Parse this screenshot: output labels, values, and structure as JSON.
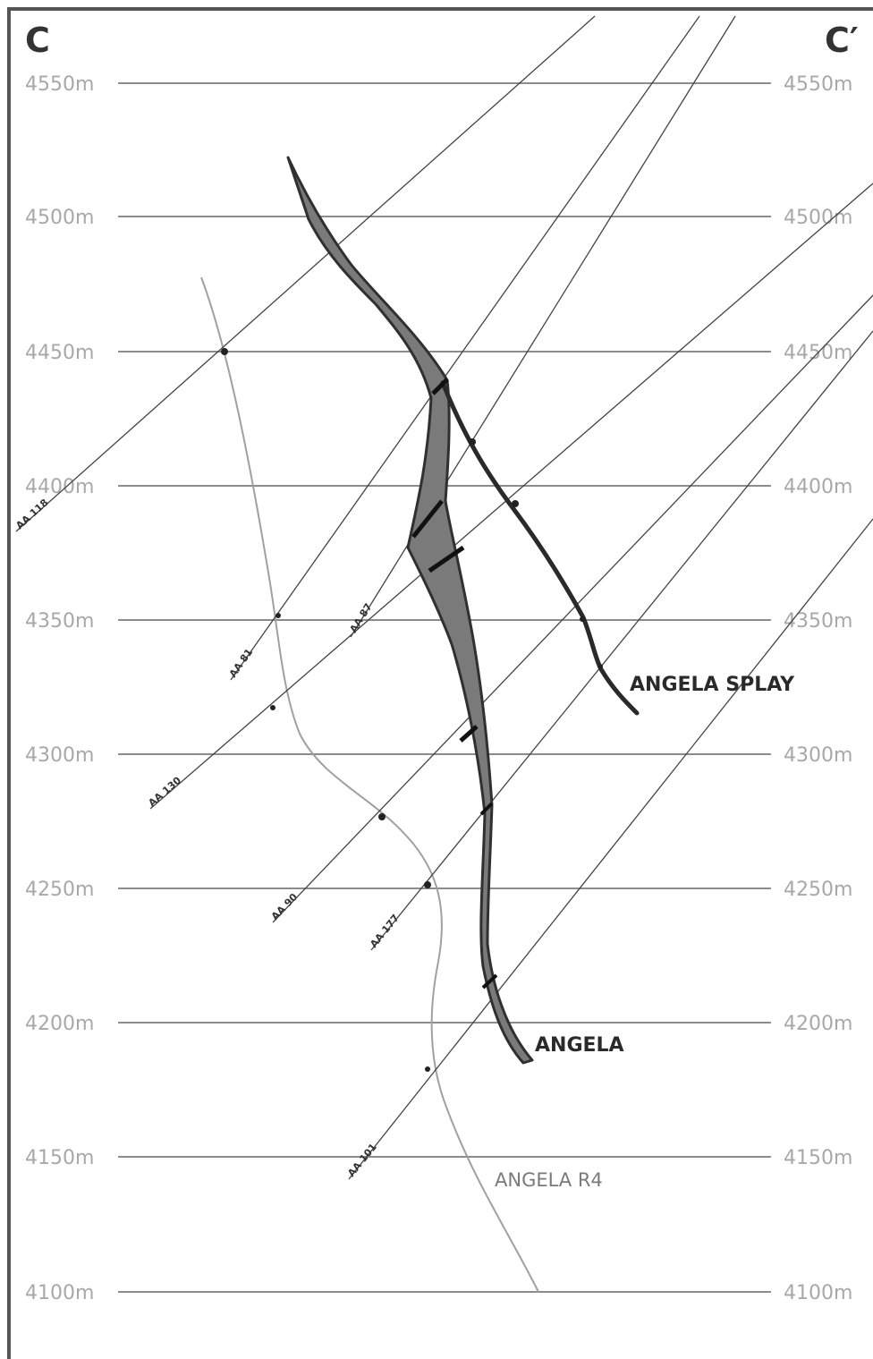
{
  "section": {
    "start_label": "C",
    "end_label": "C′"
  },
  "elevations": [
    "4550m",
    "4500m",
    "4450m",
    "4400m",
    "4350m",
    "4300m",
    "4250m",
    "4200m",
    "4150m",
    "4100m"
  ],
  "geology": {
    "angela_label": "ANGELA",
    "angela_splay_label": "ANGELA SPLAY",
    "angela_r4_label": "ANGELA R4"
  },
  "drillholes": [
    {
      "label": "AA 118"
    },
    {
      "label": "AA 81"
    },
    {
      "label": "AA 87"
    },
    {
      "label": "AA 130"
    },
    {
      "label": "AA 90"
    },
    {
      "label": "AA 177"
    },
    {
      "label": "AA 101"
    }
  ],
  "colors": {
    "frame": "#555555",
    "vein_fill": "#7a7a7a",
    "vein_outline": "#303030",
    "gridline": "#8c8c8c",
    "elevation_text": "#a8a8a8"
  }
}
